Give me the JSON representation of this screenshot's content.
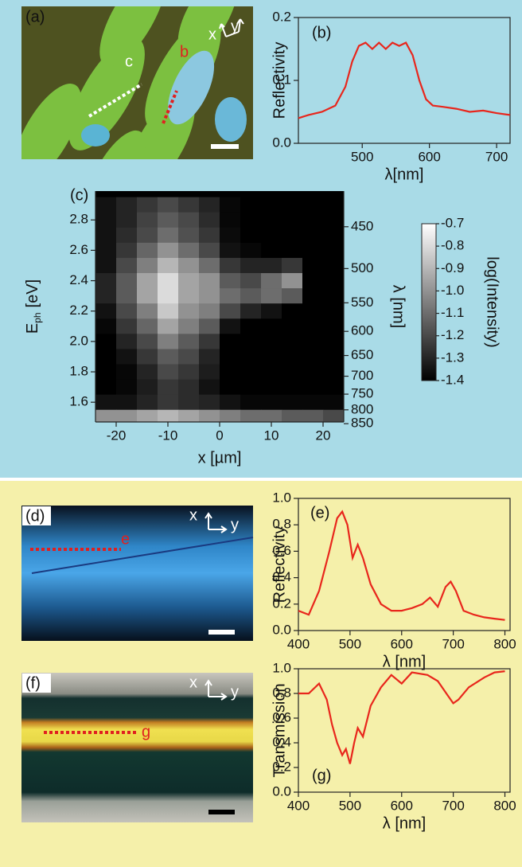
{
  "images": [
    {
      "label": "(a)",
      "markers": [
        "c",
        "b"
      ],
      "axes": [
        "x",
        "y"
      ]
    },
    {
      "label": "(d)",
      "markers": [
        "e"
      ],
      "axes": [
        "x",
        "y"
      ]
    },
    {
      "label": "(f)",
      "markers": [
        "g"
      ],
      "axes": [
        "x",
        "y"
      ]
    }
  ],
  "chart_data": [
    {
      "type": "line",
      "label": "(b)",
      "xlabel": "λ[nm]",
      "ylabel": "Reflectivity",
      "color": "#e8261c",
      "x": [
        405,
        420,
        440,
        460,
        475,
        485,
        495,
        505,
        515,
        525,
        535,
        545,
        555,
        565,
        575,
        585,
        595,
        605,
        620,
        640,
        660,
        680,
        700,
        720
      ],
      "values": [
        0.04,
        0.045,
        0.05,
        0.06,
        0.09,
        0.13,
        0.155,
        0.16,
        0.15,
        0.16,
        0.15,
        0.16,
        0.155,
        0.16,
        0.14,
        0.1,
        0.07,
        0.06,
        0.058,
        0.055,
        0.05,
        0.052,
        0.048,
        0.045
      ],
      "xlim": [
        405,
        720
      ],
      "xticks": [
        500,
        600,
        700
      ],
      "ylim": [
        0,
        0.2
      ],
      "yticks": [
        {
          "value": 0,
          "label": "0.0"
        },
        0.1,
        0.2
      ]
    },
    {
      "type": "heatmap",
      "label": "(c)",
      "xlabel": "x [µm]",
      "ylabel": [
        "E",
        "ph",
        "[eV]"
      ],
      "y2label": "λ [nm]",
      "colormap": "gray",
      "x": [
        -22,
        -18,
        -14,
        -10,
        -6,
        -2,
        2,
        6,
        10,
        14,
        18,
        22
      ],
      "y": [
        2.9,
        2.8,
        2.7,
        2.6,
        2.5,
        2.4,
        2.3,
        2.2,
        2.1,
        2.0,
        1.9,
        1.8,
        1.7,
        1.6,
        1.5
      ],
      "z": [
        [
          -1.35,
          -1.3,
          -1.25,
          -1.2,
          -1.25,
          -1.3,
          -1.38,
          -1.4,
          -1.4,
          -1.4,
          -1.4,
          -1.4
        ],
        [
          -1.35,
          -1.3,
          -1.22,
          -1.15,
          -1.2,
          -1.28,
          -1.38,
          -1.4,
          -1.4,
          -1.4,
          -1.4,
          -1.4
        ],
        [
          -1.35,
          -1.28,
          -1.2,
          -1.1,
          -1.18,
          -1.25,
          -1.37,
          -1.4,
          -1.4,
          -1.4,
          -1.4,
          -1.4
        ],
        [
          -1.35,
          -1.25,
          -1.12,
          -1.0,
          -1.1,
          -1.2,
          -1.35,
          -1.38,
          -1.4,
          -1.4,
          -1.4,
          -1.4
        ],
        [
          -1.35,
          -1.2,
          -1.05,
          -0.9,
          -1.0,
          -1.1,
          -1.25,
          -1.3,
          -1.3,
          -1.25,
          -1.4,
          -1.4
        ],
        [
          -1.3,
          -1.15,
          -0.95,
          -0.8,
          -0.95,
          -1.0,
          -1.15,
          -1.2,
          -1.1,
          -1.0,
          -1.4,
          -1.4
        ],
        [
          -1.3,
          -1.15,
          -0.95,
          -0.8,
          -0.95,
          -1.0,
          -1.1,
          -1.15,
          -1.1,
          -1.15,
          -1.4,
          -1.4
        ],
        [
          -1.35,
          -1.2,
          -1.05,
          -0.85,
          -1.0,
          -1.05,
          -1.2,
          -1.3,
          -1.35,
          -1.4,
          -1.4,
          -1.4
        ],
        [
          -1.38,
          -1.25,
          -1.12,
          -0.95,
          -1.05,
          -1.15,
          -1.35,
          -1.4,
          -1.4,
          -1.4,
          -1.4,
          -1.4
        ],
        [
          -1.4,
          -1.3,
          -1.2,
          -1.05,
          -1.15,
          -1.25,
          -1.4,
          -1.4,
          -1.4,
          -1.4,
          -1.4,
          -1.4
        ],
        [
          -1.4,
          -1.35,
          -1.25,
          -1.15,
          -1.2,
          -1.3,
          -1.4,
          -1.4,
          -1.4,
          -1.4,
          -1.4,
          -1.4
        ],
        [
          -1.4,
          -1.38,
          -1.3,
          -1.2,
          -1.25,
          -1.32,
          -1.4,
          -1.4,
          -1.4,
          -1.4,
          -1.4,
          -1.4
        ],
        [
          -1.4,
          -1.38,
          -1.32,
          -1.25,
          -1.28,
          -1.35,
          -1.4,
          -1.4,
          -1.4,
          -1.4,
          -1.4,
          -1.4
        ],
        [
          -1.35,
          -1.35,
          -1.3,
          -1.25,
          -1.28,
          -1.3,
          -1.35,
          -1.38,
          -1.38,
          -1.38,
          -1.38,
          -1.38
        ],
        [
          -1.0,
          -1.0,
          -0.95,
          -0.9,
          -0.95,
          -1.0,
          -1.05,
          -1.1,
          -1.1,
          -1.15,
          -1.15,
          -1.2
        ]
      ],
      "xlim": [
        -24,
        24
      ],
      "xticks": [
        -20,
        -10,
        0,
        10,
        20
      ],
      "ylim": [
        1.47,
        2.99
      ],
      "yticks": [
        1.6,
        1.8,
        {
          "value": 2,
          "label": "2.0"
        },
        2.2,
        2.4,
        2.6,
        2.8
      ],
      "y2ticks": [
        450,
        500,
        550,
        600,
        650,
        700,
        750,
        800,
        850
      ],
      "colorbar": {
        "label": "log(Intensity)",
        "lim": [
          -1.4,
          -0.7
        ],
        "ticks": [
          -0.7,
          -0.8,
          -0.9,
          {
            "value": -1,
            "label": "-1.0"
          },
          -1.1,
          -1.2,
          -1.3,
          -1.4
        ]
      }
    },
    {
      "type": "line",
      "label": "(e)",
      "xlabel": "λ [nm]",
      "ylabel": "Reflectivity",
      "color": "#e8261c",
      "x": [
        400,
        420,
        440,
        460,
        475,
        485,
        495,
        505,
        515,
        525,
        540,
        560,
        580,
        600,
        620,
        640,
        655,
        670,
        685,
        695,
        705,
        720,
        740,
        760,
        780,
        800
      ],
      "values": [
        0.15,
        0.12,
        0.3,
        0.6,
        0.85,
        0.9,
        0.8,
        0.55,
        0.65,
        0.55,
        0.35,
        0.2,
        0.15,
        0.15,
        0.17,
        0.2,
        0.25,
        0.18,
        0.33,
        0.37,
        0.3,
        0.15,
        0.12,
        0.1,
        0.09,
        0.08
      ],
      "xlim": [
        400,
        810
      ],
      "xticks": [
        400,
        500,
        600,
        700,
        800
      ],
      "ylim": [
        0,
        1
      ],
      "yticks": [
        {
          "value": 0,
          "label": "0.0"
        },
        0.2,
        0.4,
        0.6,
        0.8,
        {
          "value": 1,
          "label": "1.0"
        }
      ]
    },
    {
      "type": "line",
      "label": "(g)",
      "xlabel": "λ [nm]",
      "ylabel": "Transmission",
      "color": "#e8261c",
      "x": [
        400,
        420,
        440,
        455,
        465,
        475,
        485,
        492,
        500,
        508,
        515,
        525,
        540,
        560,
        580,
        600,
        620,
        650,
        670,
        690,
        700,
        710,
        730,
        760,
        780,
        800
      ],
      "values": [
        0.8,
        0.8,
        0.88,
        0.75,
        0.55,
        0.4,
        0.3,
        0.35,
        0.23,
        0.4,
        0.52,
        0.45,
        0.7,
        0.85,
        0.95,
        0.88,
        0.97,
        0.95,
        0.9,
        0.78,
        0.72,
        0.75,
        0.85,
        0.93,
        0.97,
        0.98
      ],
      "xlim": [
        400,
        810
      ],
      "xticks": [
        400,
        500,
        600,
        700,
        800
      ],
      "ylim": [
        0,
        1
      ],
      "yticks": [
        {
          "value": 0,
          "label": "0.0"
        },
        0.2,
        0.4,
        0.6,
        0.8,
        {
          "value": 1,
          "label": "1.0"
        }
      ]
    }
  ]
}
